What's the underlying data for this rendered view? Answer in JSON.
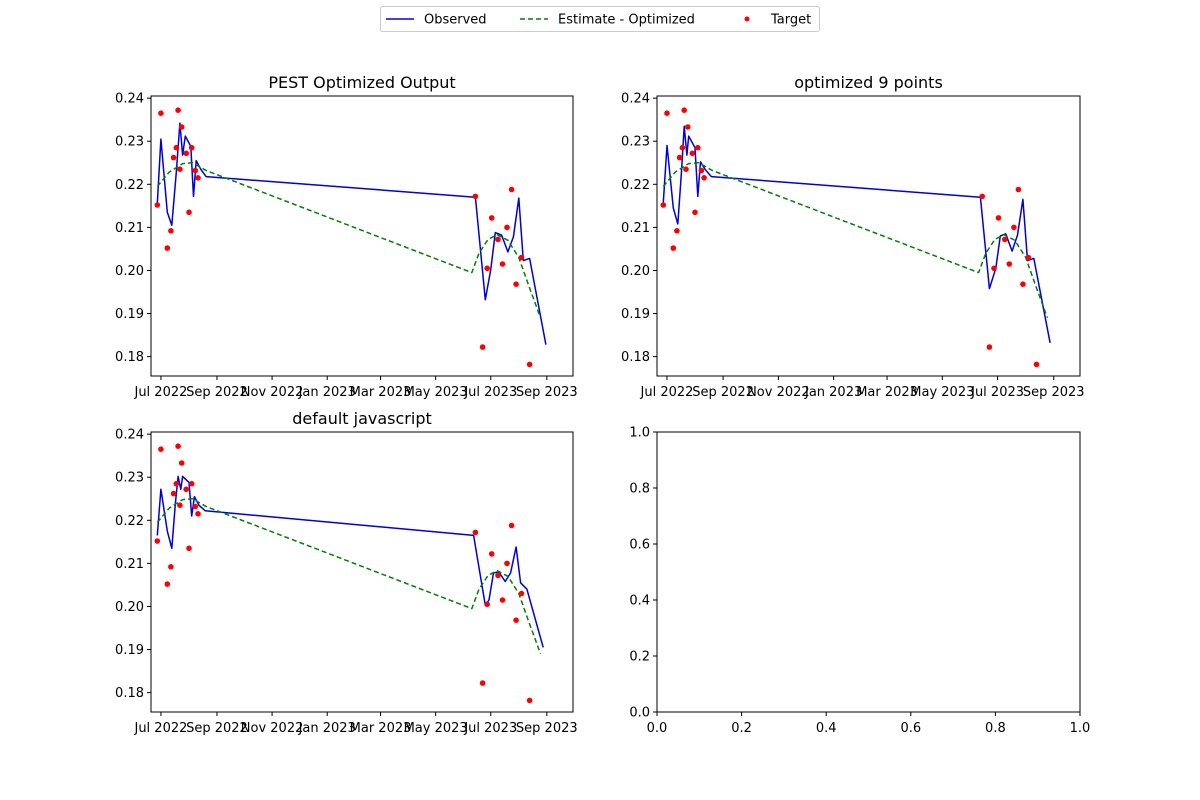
{
  "legend": {
    "placement": "top-center",
    "entries": [
      {
        "label": "Observed",
        "style": "line",
        "color": "#0000dd"
      },
      {
        "label": "Estimate - Optimized",
        "style": "dashed",
        "color": "#008000"
      },
      {
        "label": "Target",
        "style": "marker",
        "color": "#ff0000"
      }
    ]
  },
  "chart_data": [
    {
      "type": "line",
      "title": "PEST Optimized Output",
      "xaxis": {
        "type": "date",
        "ticks": [
          "Jul 2022",
          "Sep 2022",
          "Nov 2022",
          "Jan 2023",
          "Mar 2023",
          "May 2023",
          "Jul 2023",
          "Sep 2023"
        ],
        "range": [
          "2022-06-20",
          "2023-09-30"
        ]
      },
      "yaxis": {
        "ticks": [
          "0.18",
          "0.19",
          "0.20",
          "0.21",
          "0.22",
          "0.23",
          "0.24"
        ],
        "range": [
          0.1755,
          0.2405
        ]
      },
      "series": [
        {
          "name": "Observed",
          "kind": "line",
          "color": "#0000dd",
          "points": [
            [
              "2022-06-27",
              0.2155
            ],
            [
              "2022-07-01",
              0.2305
            ],
            [
              "2022-07-08",
              0.2135
            ],
            [
              "2022-07-13",
              0.2105
            ],
            [
              "2022-07-18",
              0.2228
            ],
            [
              "2022-07-22",
              0.2342
            ],
            [
              "2022-07-25",
              0.2268
            ],
            [
              "2022-07-28",
              0.2312
            ],
            [
              "2022-08-03",
              0.2288
            ],
            [
              "2022-08-06",
              0.2172
            ],
            [
              "2022-08-09",
              0.2255
            ],
            [
              "2022-08-14",
              0.2235
            ],
            [
              "2022-08-20",
              0.2218
            ],
            [
              "2023-06-14",
              0.217
            ],
            [
              "2023-06-25",
              0.1932
            ],
            [
              "2023-07-01",
              0.2003
            ],
            [
              "2023-07-06",
              0.2088
            ],
            [
              "2023-07-13",
              0.2082
            ],
            [
              "2023-07-20",
              0.2043
            ],
            [
              "2023-07-26",
              0.2078
            ],
            [
              "2023-08-01",
              0.2168
            ],
            [
              "2023-08-06",
              0.2023
            ],
            [
              "2023-08-13",
              0.2028
            ],
            [
              "2023-08-31",
              0.1828
            ]
          ]
        },
        {
          "name": "Estimate - Optimized",
          "kind": "dashed",
          "color": "#008000",
          "points": [
            [
              "2022-06-27",
              0.2195
            ],
            [
              "2022-07-10",
              0.2228
            ],
            [
              "2022-07-25",
              0.2248
            ],
            [
              "2022-08-05",
              0.225
            ],
            [
              "2022-08-20",
              0.2232
            ],
            [
              "2023-06-10",
              0.1995
            ],
            [
              "2023-06-18",
              0.204
            ],
            [
              "2023-06-28",
              0.2072
            ],
            [
              "2023-07-08",
              0.2083
            ],
            [
              "2023-07-20",
              0.207
            ],
            [
              "2023-08-01",
              0.203
            ],
            [
              "2023-08-12",
              0.1965
            ],
            [
              "2023-08-25",
              0.189
            ]
          ]
        },
        {
          "name": "Target",
          "kind": "scatter",
          "color": "#ff0000",
          "points": [
            [
              "2022-06-27",
              0.2152
            ],
            [
              "2022-07-01",
              0.2365
            ],
            [
              "2022-07-08",
              0.2052
            ],
            [
              "2022-07-12",
              0.2092
            ],
            [
              "2022-07-15",
              0.2262
            ],
            [
              "2022-07-18",
              0.2285
            ],
            [
              "2022-07-20",
              0.2372
            ],
            [
              "2022-07-22",
              0.2235
            ],
            [
              "2022-07-24",
              0.2333
            ],
            [
              "2022-07-29",
              0.2272
            ],
            [
              "2022-08-01",
              0.2135
            ],
            [
              "2022-08-04",
              0.2285
            ],
            [
              "2022-08-08",
              0.2232
            ],
            [
              "2022-08-11",
              0.2215
            ],
            [
              "2023-06-14",
              0.2172
            ],
            [
              "2023-06-22",
              0.1822
            ],
            [
              "2023-06-27",
              0.2005
            ],
            [
              "2023-07-02",
              0.2122
            ],
            [
              "2023-07-09",
              0.2072
            ],
            [
              "2023-07-14",
              0.2015
            ],
            [
              "2023-07-19",
              0.21
            ],
            [
              "2023-07-24",
              0.2188
            ],
            [
              "2023-07-29",
              0.1968
            ],
            [
              "2023-08-04",
              0.203
            ],
            [
              "2023-08-13",
              0.1782
            ]
          ]
        }
      ]
    },
    {
      "type": "line",
      "title": "optimized 9 points",
      "xaxis": {
        "type": "date",
        "ticks": [
          "Jul 2022",
          "Sep 2022",
          "Nov 2022",
          "Jan 2023",
          "Mar 2023",
          "May 2023",
          "Jul 2023",
          "Sep 2023"
        ],
        "range": [
          "2022-06-20",
          "2023-09-30"
        ]
      },
      "yaxis": {
        "ticks": [
          "0.18",
          "0.19",
          "0.20",
          "0.21",
          "0.22",
          "0.23",
          "0.24"
        ],
        "range": [
          0.1755,
          0.2405
        ]
      },
      "series": [
        {
          "name": "Observed",
          "kind": "line",
          "color": "#0000dd",
          "points": [
            [
              "2022-06-27",
              0.2158
            ],
            [
              "2022-07-01",
              0.229
            ],
            [
              "2022-07-08",
              0.2145
            ],
            [
              "2022-07-13",
              0.2108
            ],
            [
              "2022-07-17",
              0.223
            ],
            [
              "2022-07-20",
              0.2335
            ],
            [
              "2022-07-23",
              0.2268
            ],
            [
              "2022-07-25",
              0.2312
            ],
            [
              "2022-08-01",
              0.2285
            ],
            [
              "2022-08-04",
              0.2172
            ],
            [
              "2022-08-07",
              0.2252
            ],
            [
              "2022-08-12",
              0.2235
            ],
            [
              "2022-08-19",
              0.2218
            ],
            [
              "2023-06-12",
              0.217
            ],
            [
              "2023-06-22",
              0.1958
            ],
            [
              "2023-06-29",
              0.2005
            ],
            [
              "2023-07-04",
              0.208
            ],
            [
              "2023-07-10",
              0.2085
            ],
            [
              "2023-07-17",
              0.2045
            ],
            [
              "2023-07-23",
              0.2082
            ],
            [
              "2023-07-29",
              0.2165
            ],
            [
              "2023-08-03",
              0.2023
            ],
            [
              "2023-08-10",
              0.2028
            ],
            [
              "2023-08-28",
              0.1832
            ]
          ]
        },
        {
          "name": "Estimate - Optimized",
          "kind": "dashed",
          "color": "#008000",
          "points": [
            [
              "2022-06-27",
              0.2195
            ],
            [
              "2022-07-10",
              0.2228
            ],
            [
              "2022-07-25",
              0.2248
            ],
            [
              "2022-08-05",
              0.225
            ],
            [
              "2022-08-20",
              0.2232
            ],
            [
              "2023-06-10",
              0.1995
            ],
            [
              "2023-06-18",
              0.204
            ],
            [
              "2023-06-28",
              0.2072
            ],
            [
              "2023-07-08",
              0.2083
            ],
            [
              "2023-07-20",
              0.207
            ],
            [
              "2023-08-01",
              0.203
            ],
            [
              "2023-08-12",
              0.1965
            ],
            [
              "2023-08-25",
              0.189
            ]
          ]
        },
        {
          "name": "Target",
          "kind": "scatter",
          "color": "#ff0000",
          "points": [
            [
              "2022-06-27",
              0.2152
            ],
            [
              "2022-07-01",
              0.2365
            ],
            [
              "2022-07-08",
              0.2052
            ],
            [
              "2022-07-12",
              0.2092
            ],
            [
              "2022-07-15",
              0.2262
            ],
            [
              "2022-07-18",
              0.2285
            ],
            [
              "2022-07-20",
              0.2372
            ],
            [
              "2022-07-22",
              0.2235
            ],
            [
              "2022-07-24",
              0.2333
            ],
            [
              "2022-07-29",
              0.2272
            ],
            [
              "2022-08-01",
              0.2135
            ],
            [
              "2022-08-04",
              0.2285
            ],
            [
              "2022-08-08",
              0.2232
            ],
            [
              "2022-08-11",
              0.2215
            ],
            [
              "2023-06-14",
              0.2172
            ],
            [
              "2023-06-22",
              0.1822
            ],
            [
              "2023-06-27",
              0.2005
            ],
            [
              "2023-07-02",
              0.2122
            ],
            [
              "2023-07-09",
              0.2072
            ],
            [
              "2023-07-14",
              0.2015
            ],
            [
              "2023-07-19",
              0.21
            ],
            [
              "2023-07-24",
              0.2188
            ],
            [
              "2023-07-29",
              0.1968
            ],
            [
              "2023-08-04",
              0.203
            ],
            [
              "2023-08-13",
              0.1782
            ]
          ]
        }
      ]
    },
    {
      "type": "line",
      "title": "default javascript",
      "xaxis": {
        "type": "date",
        "ticks": [
          "Jul 2022",
          "Sep 2022",
          "Nov 2022",
          "Jan 2023",
          "Mar 2023",
          "May 2023",
          "Jul 2023",
          "Sep 2023"
        ],
        "range": [
          "2022-06-20",
          "2023-09-30"
        ]
      },
      "yaxis": {
        "ticks": [
          "0.18",
          "0.19",
          "0.20",
          "0.21",
          "0.22",
          "0.23",
          "0.24"
        ],
        "range": [
          0.1755,
          0.2405
        ]
      },
      "series": [
        {
          "name": "Observed",
          "kind": "line",
          "color": "#0000dd",
          "points": [
            [
              "2022-06-27",
              0.2165
            ],
            [
              "2022-07-01",
              0.2272
            ],
            [
              "2022-07-08",
              0.2175
            ],
            [
              "2022-07-13",
              0.2135
            ],
            [
              "2022-07-17",
              0.224
            ],
            [
              "2022-07-20",
              0.2302
            ],
            [
              "2022-07-23",
              0.2272
            ],
            [
              "2022-07-25",
              0.2302
            ],
            [
              "2022-08-01",
              0.2288
            ],
            [
              "2022-08-04",
              0.221
            ],
            [
              "2022-08-07",
              0.2255
            ],
            [
              "2022-08-12",
              0.2235
            ],
            [
              "2022-08-19",
              0.2222
            ],
            [
              "2023-06-12",
              0.2165
            ],
            [
              "2023-06-25",
              0.2003
            ],
            [
              "2023-06-29",
              0.2015
            ],
            [
              "2023-07-04",
              0.2078
            ],
            [
              "2023-07-10",
              0.208
            ],
            [
              "2023-07-17",
              0.2058
            ],
            [
              "2023-07-23",
              0.2078
            ],
            [
              "2023-07-29",
              0.2138
            ],
            [
              "2023-08-03",
              0.2055
            ],
            [
              "2023-08-10",
              0.204
            ],
            [
              "2023-08-28",
              0.1905
            ]
          ]
        },
        {
          "name": "Estimate - Optimized",
          "kind": "dashed",
          "color": "#008000",
          "points": [
            [
              "2022-06-27",
              0.2195
            ],
            [
              "2022-07-10",
              0.2228
            ],
            [
              "2022-07-25",
              0.2248
            ],
            [
              "2022-08-05",
              0.225
            ],
            [
              "2022-08-20",
              0.2232
            ],
            [
              "2023-06-10",
              0.1995
            ],
            [
              "2023-06-18",
              0.204
            ],
            [
              "2023-06-28",
              0.2072
            ],
            [
              "2023-07-08",
              0.2083
            ],
            [
              "2023-07-20",
              0.207
            ],
            [
              "2023-08-01",
              0.203
            ],
            [
              "2023-08-12",
              0.1965
            ],
            [
              "2023-08-25",
              0.189
            ]
          ]
        },
        {
          "name": "Target",
          "kind": "scatter",
          "color": "#ff0000",
          "points": [
            [
              "2022-06-27",
              0.2152
            ],
            [
              "2022-07-01",
              0.2365
            ],
            [
              "2022-07-08",
              0.2052
            ],
            [
              "2022-07-12",
              0.2092
            ],
            [
              "2022-07-15",
              0.2262
            ],
            [
              "2022-07-18",
              0.2285
            ],
            [
              "2022-07-20",
              0.2372
            ],
            [
              "2022-07-22",
              0.2235
            ],
            [
              "2022-07-24",
              0.2333
            ],
            [
              "2022-07-29",
              0.2272
            ],
            [
              "2022-08-01",
              0.2135
            ],
            [
              "2022-08-04",
              0.2285
            ],
            [
              "2022-08-08",
              0.2232
            ],
            [
              "2022-08-11",
              0.2215
            ],
            [
              "2023-06-14",
              0.2172
            ],
            [
              "2023-06-22",
              0.1822
            ],
            [
              "2023-06-27",
              0.2005
            ],
            [
              "2023-07-02",
              0.2122
            ],
            [
              "2023-07-09",
              0.2072
            ],
            [
              "2023-07-14",
              0.2015
            ],
            [
              "2023-07-19",
              0.21
            ],
            [
              "2023-07-24",
              0.2188
            ],
            [
              "2023-07-29",
              0.1968
            ],
            [
              "2023-08-04",
              0.203
            ],
            [
              "2023-08-13",
              0.1782
            ]
          ]
        }
      ]
    },
    {
      "type": "line",
      "title": "",
      "xaxis": {
        "type": "linear",
        "ticks": [
          "0.0",
          "0.2",
          "0.4",
          "0.6",
          "0.8",
          "1.0"
        ],
        "range": [
          0,
          1
        ]
      },
      "yaxis": {
        "ticks": [
          "0.0",
          "0.2",
          "0.4",
          "0.6",
          "0.8",
          "1.0"
        ],
        "range": [
          0,
          1
        ]
      },
      "series": []
    }
  ]
}
